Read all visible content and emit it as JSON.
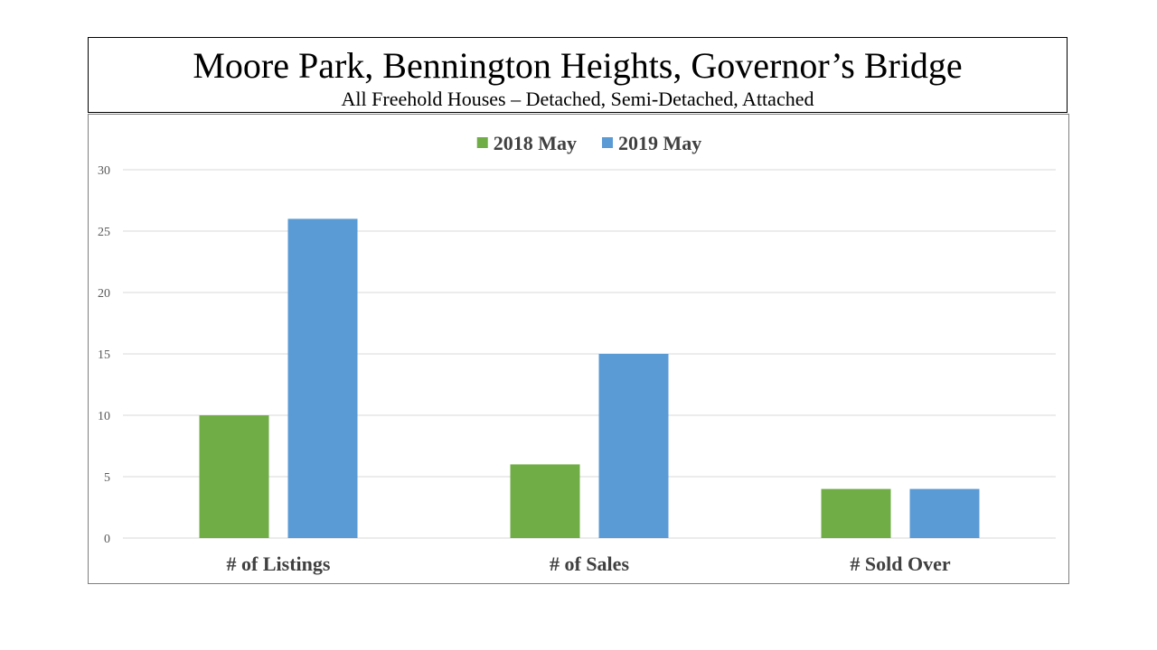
{
  "header": {
    "title": "Moore Park, Bennington Heights, Governor’s Bridge",
    "subtitle": "All Freehold Houses – Detached, Semi-Detached, Attached"
  },
  "chart_data": {
    "type": "bar",
    "categories": [
      "# of Listings",
      "# of Sales",
      "# Sold Over"
    ],
    "series": [
      {
        "name": "2018 May",
        "values": [
          10,
          6,
          4
        ],
        "color": "#70ad47"
      },
      {
        "name": "2019 May",
        "values": [
          26,
          15,
          4
        ],
        "color": "#5b9bd5"
      }
    ],
    "ylim": [
      0,
      30
    ],
    "yticks": [
      0,
      5,
      10,
      15,
      20,
      25,
      30
    ],
    "grid": true,
    "legend_position": "top-center",
    "title": "",
    "xlabel": "",
    "ylabel": ""
  }
}
